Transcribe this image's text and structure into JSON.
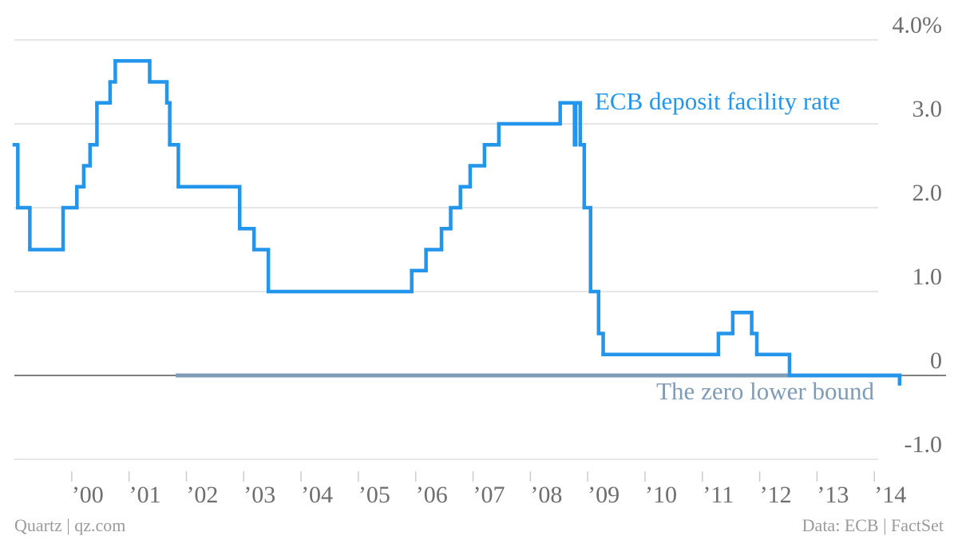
{
  "chart_data": {
    "type": "step",
    "series": [
      {
        "name": "ECB deposit facility rate",
        "color": "#2396ec",
        "x": [
          1999.0,
          1999.06,
          1999.27,
          1999.85,
          2000.09,
          2000.21,
          2000.32,
          2000.44,
          2000.67,
          2000.76,
          2001.36,
          2001.66,
          2001.71,
          2001.86,
          2002.93,
          2003.18,
          2003.43,
          2005.93,
          2006.18,
          2006.45,
          2006.61,
          2006.78,
          2006.95,
          2007.2,
          2007.45,
          2008.52,
          2008.77,
          2008.79,
          2008.87,
          2008.94,
          2009.05,
          2009.19,
          2009.27,
          2011.28,
          2011.53,
          2011.86,
          2011.95,
          2012.52,
          2014.44
        ],
        "values": [
          2.75,
          2.0,
          1.5,
          2.0,
          2.25,
          2.5,
          2.75,
          3.25,
          3.5,
          3.75,
          3.5,
          3.25,
          2.75,
          2.25,
          1.75,
          1.5,
          1.0,
          1.25,
          1.5,
          1.75,
          2.0,
          2.25,
          2.5,
          2.75,
          3.0,
          3.25,
          2.75,
          3.25,
          2.75,
          2.0,
          1.0,
          0.5,
          0.25,
          0.5,
          0.75,
          0.5,
          0.25,
          0.0,
          -0.1
        ]
      },
      {
        "name": "The zero lower bound",
        "color": "#7e9cb8",
        "x": [
          2001.85,
          2014.44
        ],
        "values": [
          0,
          0
        ]
      }
    ],
    "xlim": [
      1999,
      2015.25
    ],
    "xticks": [
      {
        "value": 2000,
        "label": "’00"
      },
      {
        "value": 2001,
        "label": "’01"
      },
      {
        "value": 2002,
        "label": "’02"
      },
      {
        "value": 2003,
        "label": "’03"
      },
      {
        "value": 2004,
        "label": "’04"
      },
      {
        "value": 2005,
        "label": "’05"
      },
      {
        "value": 2006,
        "label": "’06"
      },
      {
        "value": 2007,
        "label": "’07"
      },
      {
        "value": 2008,
        "label": "’08"
      },
      {
        "value": 2009,
        "label": "’09"
      },
      {
        "value": 2010,
        "label": "’10"
      },
      {
        "value": 2011,
        "label": "’11"
      },
      {
        "value": 2012,
        "label": "’12"
      },
      {
        "value": 2013,
        "label": "’13"
      },
      {
        "value": 2014,
        "label": "’14"
      }
    ],
    "ylim": [
      -1.0,
      4.0
    ],
    "yticks": [
      {
        "value": 4,
        "label": "4.0%"
      },
      {
        "value": 3,
        "label": "3.0"
      },
      {
        "value": 2,
        "label": "2.0"
      },
      {
        "value": 1,
        "label": "1.0"
      },
      0,
      {
        "value": -1,
        "label": "-1.0"
      }
    ],
    "grid": true,
    "source": "Data: ECB | FactSet",
    "credit": "Quartz | qz.com"
  }
}
